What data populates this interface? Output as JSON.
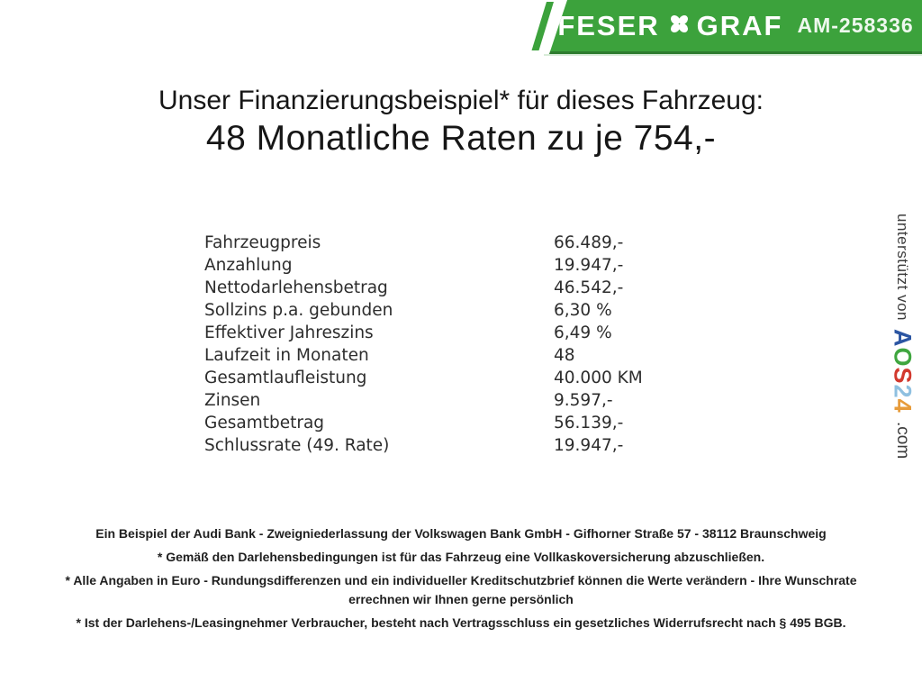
{
  "banner": {
    "brand_left": "FESER",
    "brand_right": "GRAF",
    "reference": "AM-258336",
    "colors": {
      "background": "#3ca23c",
      "border_bottom": "#2e7c2f",
      "text": "#ffffff"
    }
  },
  "headline": {
    "line1": "Unser Finanzierungsbeispiel* für dieses Fahrzeug:",
    "line2": "48 Monatliche Raten zu je 754,-"
  },
  "financing_table": {
    "rows": [
      {
        "label": "Fahrzeugpreis",
        "value": "66.489,-"
      },
      {
        "label": "Anzahlung",
        "value": "19.947,-"
      },
      {
        "label": "Nettodarlehensbetrag",
        "value": "46.542,-"
      },
      {
        "label": "Sollzins p.a. gebunden",
        "value": "6,30 %"
      },
      {
        "label": "Effektiver Jahreszins",
        "value": "6,49 %"
      },
      {
        "label": "Laufzeit in Monaten",
        "value": "48"
      },
      {
        "label": "Gesamtlaufleistung",
        "value": "40.000 KM"
      },
      {
        "label": "Zinsen",
        "value": "9.597,-"
      },
      {
        "label": "Gesamtbetrag",
        "value": "56.139,-"
      },
      {
        "label": "Schlussrate (49. Rate)",
        "value": "19.947,-"
      }
    ]
  },
  "side_strip": {
    "supported_by": "unterstützt von",
    "logo_letters": [
      {
        "char": "A",
        "color": "#2b55a2"
      },
      {
        "char": "O",
        "color": "#3fa63f"
      },
      {
        "char": "S",
        "color": "#d2392e"
      },
      {
        "char": "2",
        "color": "#8fc0e0"
      },
      {
        "char": "4",
        "color": "#e79b3a"
      }
    ],
    "logo_suffix": ".com"
  },
  "footer": {
    "paragraphs": [
      "Ein Beispiel der Audi Bank - Zweigniederlassung der Volkswagen Bank GmbH - Gifhorner Straße 57 - 38112 Braunschweig",
      "* Gemäß den Darlehensbedingungen ist für das Fahrzeug eine Vollkaskoversicherung abzuschließen.",
      "* Alle Angaben in Euro - Rundungsdifferenzen und ein individueller Kreditschutzbrief können die Werte verändern - Ihre Wunschrate errechnen wir Ihnen gerne persönlich",
      "* Ist der Darlehens-/Leasingnehmer Verbraucher, besteht nach Vertragsschluss ein gesetzliches Widerrufsrecht nach § 495 BGB."
    ]
  }
}
